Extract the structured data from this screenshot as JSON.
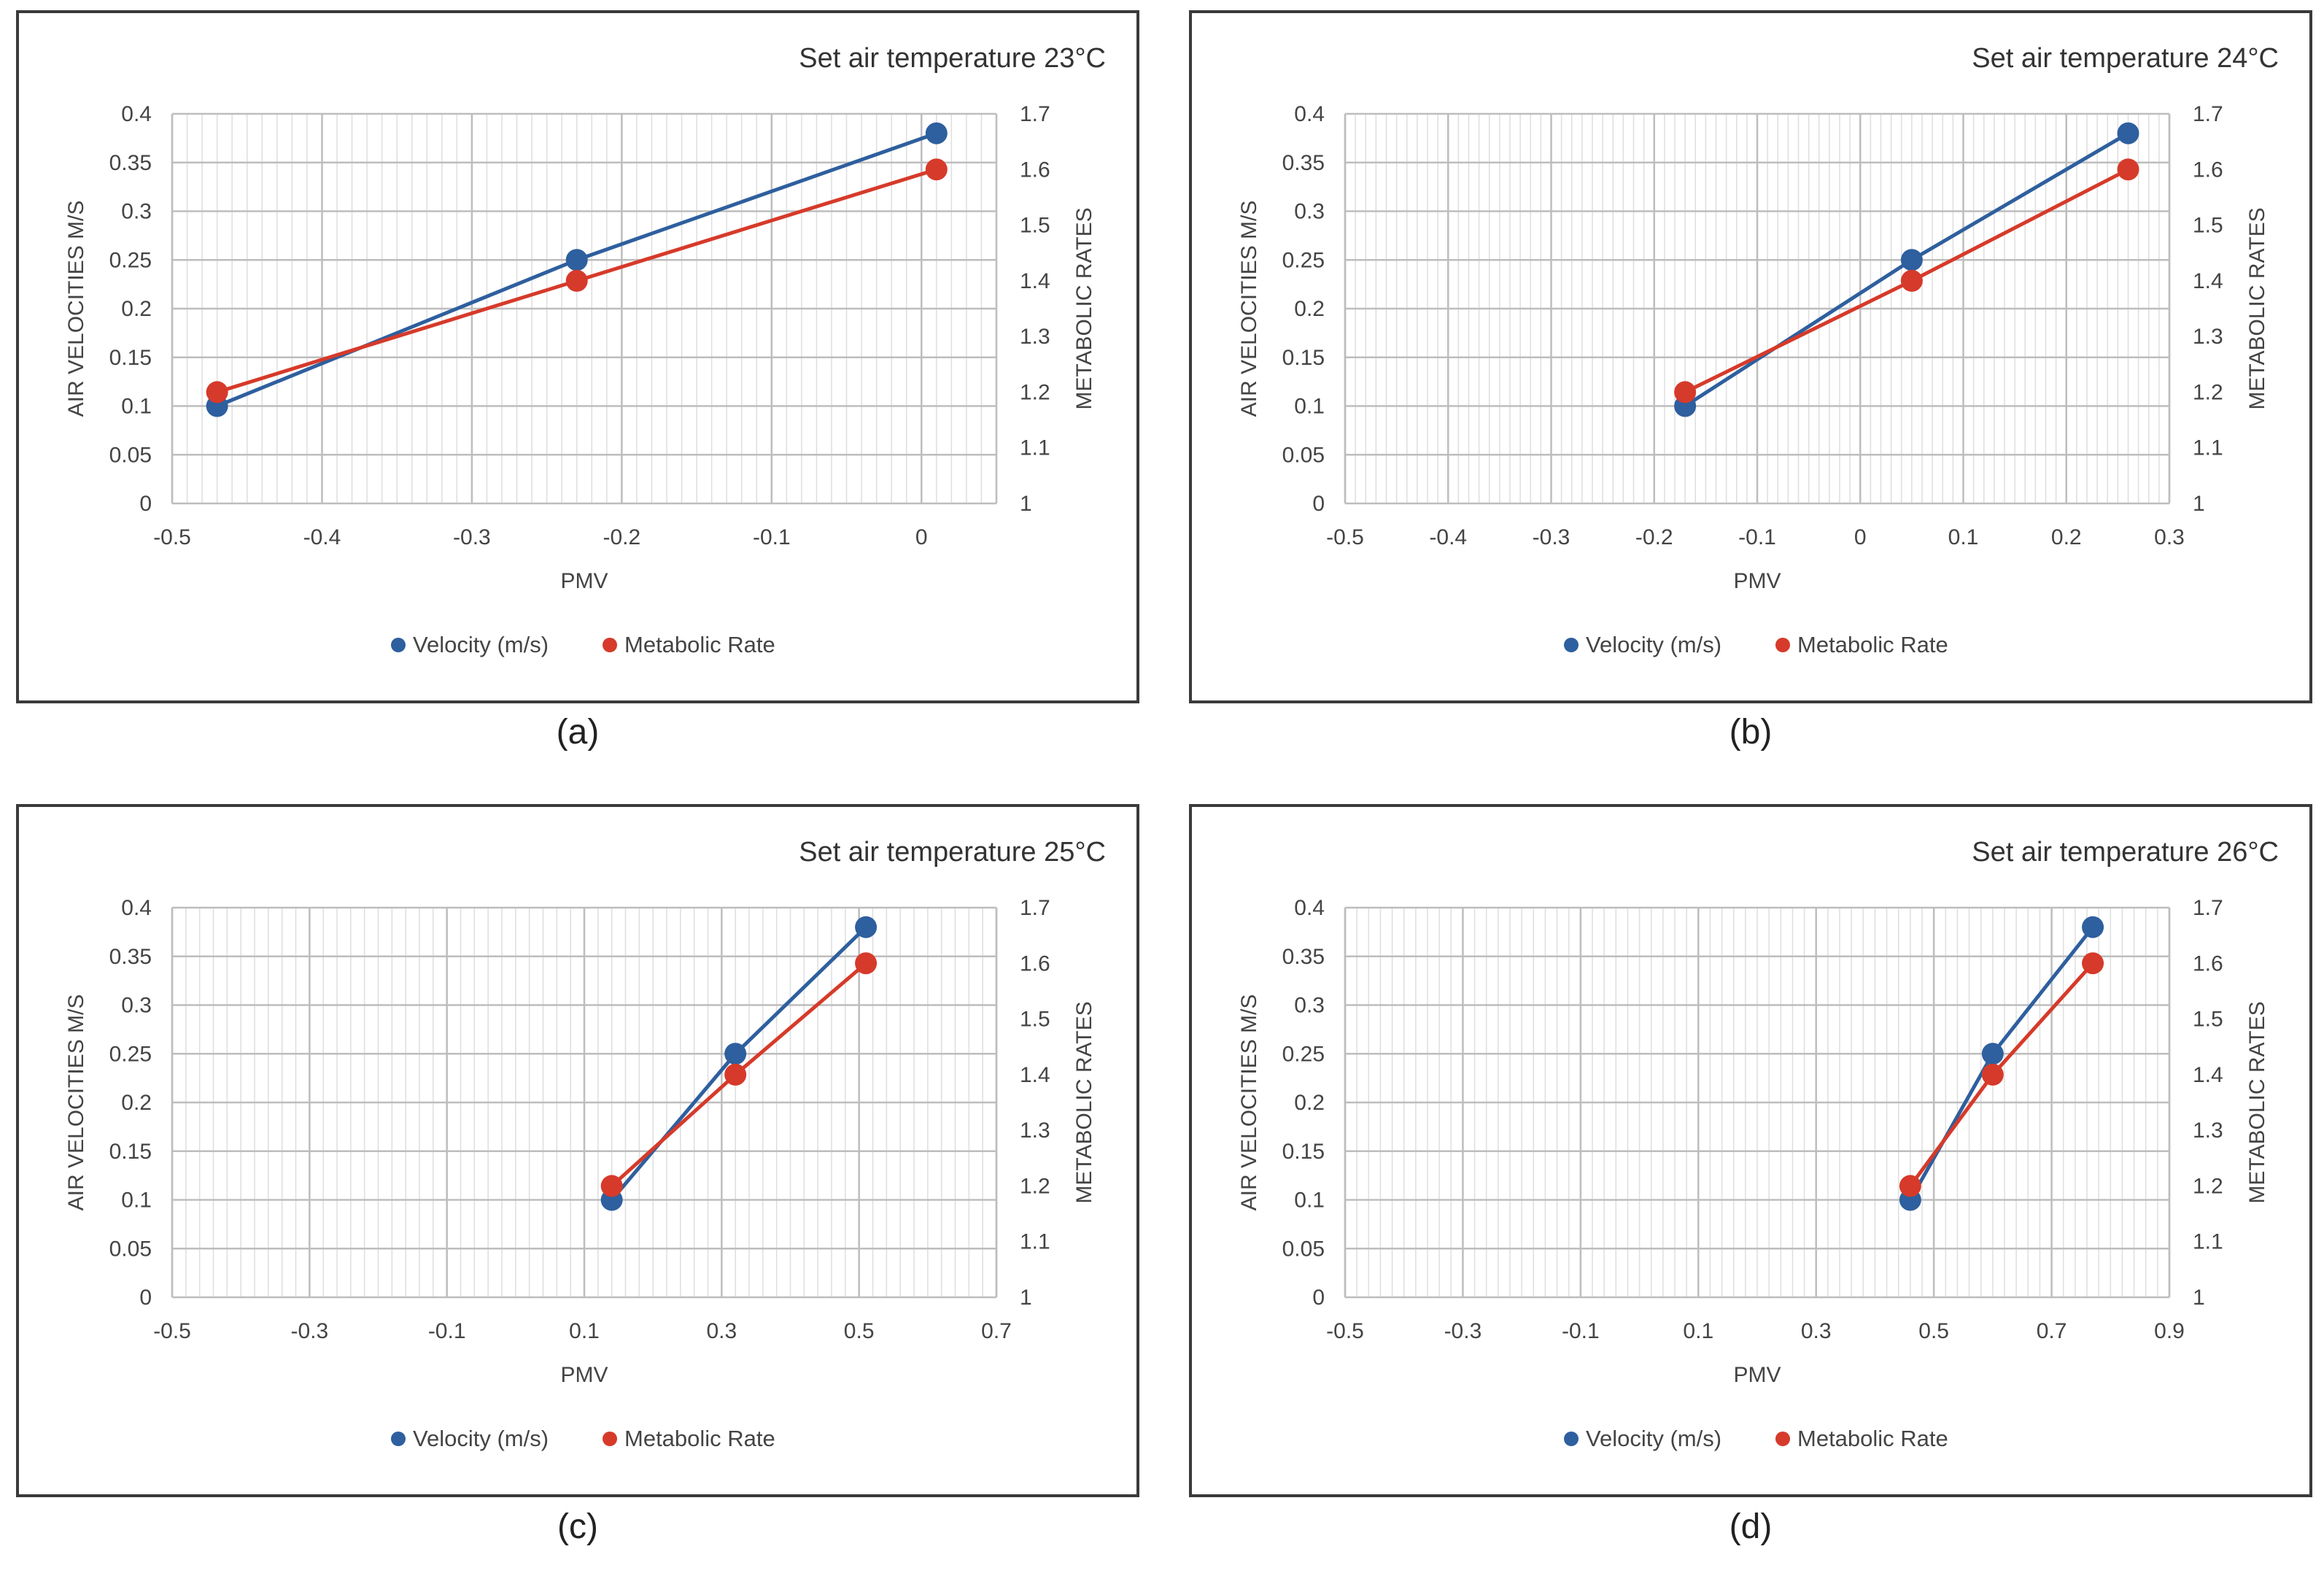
{
  "captions": [
    "(a)",
    "(b)",
    "(c)",
    "(d)"
  ],
  "colors": {
    "velocity": "#2e5f9e",
    "metabolic": "#d63a2a",
    "grid_major": "#bdbdbd",
    "grid_minor": "#dedede",
    "axis_text": "#444444"
  },
  "chart_data": [
    {
      "type": "line",
      "title": "Set air temperature 23°C",
      "xlabel": "PMV",
      "ylabel": "AIR VELOCITIES M/S",
      "y2label": "METABOLIC RATES",
      "xlim": [
        -0.5,
        0.05
      ],
      "xticks": [
        "-0.5",
        "-0.4",
        "-0.3",
        "-0.2",
        "-0.1",
        "0"
      ],
      "xtick_values": [
        -0.5,
        -0.4,
        -0.3,
        -0.2,
        -0.1,
        0
      ],
      "ylim": [
        0,
        0.4
      ],
      "yticks": [
        "0",
        "0.05",
        "0.1",
        "0.15",
        "0.2",
        "0.25",
        "0.3",
        "0.35",
        "0.4"
      ],
      "y2lim": [
        1,
        1.7
      ],
      "y2ticks": [
        "1",
        "1.1",
        "1.2",
        "1.3",
        "1.4",
        "1.5",
        "1.6",
        "1.7"
      ],
      "grid": true,
      "legend_position": "bottom",
      "series": [
        {
          "name": "Velocity (m/s)",
          "axis": "left",
          "x": [
            -0.47,
            -0.23,
            0.01
          ],
          "y": [
            0.1,
            0.25,
            0.38
          ]
        },
        {
          "name": "Metabolic Rate",
          "axis": "right",
          "x": [
            -0.47,
            -0.23,
            0.01
          ],
          "y": [
            1.2,
            1.4,
            1.6
          ]
        }
      ]
    },
    {
      "type": "line",
      "title": "Set air temperature 24°C",
      "xlabel": "PMV",
      "ylabel": "AIR VELOCITIES M/S",
      "y2label": "METABOLIC RATES",
      "xlim": [
        -0.5,
        0.3
      ],
      "xticks": [
        "-0.5",
        "-0.4",
        "-0.3",
        "-0.2",
        "-0.1",
        "0",
        "0.1",
        "0.2",
        "0.3"
      ],
      "xtick_values": [
        -0.5,
        -0.4,
        -0.3,
        -0.2,
        -0.1,
        0,
        0.1,
        0.2,
        0.3
      ],
      "ylim": [
        0,
        0.4
      ],
      "yticks": [
        "0",
        "0.05",
        "0.1",
        "0.15",
        "0.2",
        "0.25",
        "0.3",
        "0.35",
        "0.4"
      ],
      "y2lim": [
        1,
        1.7
      ],
      "y2ticks": [
        "1",
        "1.1",
        "1.2",
        "1.3",
        "1.4",
        "1.5",
        "1.6",
        "1.7"
      ],
      "grid": true,
      "legend_position": "bottom",
      "series": [
        {
          "name": "Velocity (m/s)",
          "axis": "left",
          "x": [
            -0.17,
            0.05,
            0.26
          ],
          "y": [
            0.1,
            0.25,
            0.38
          ]
        },
        {
          "name": "Metabolic Rate",
          "axis": "right",
          "x": [
            -0.17,
            0.05,
            0.26
          ],
          "y": [
            1.2,
            1.4,
            1.6
          ]
        }
      ]
    },
    {
      "type": "line",
      "title": "Set air temperature 25°C",
      "xlabel": "PMV",
      "ylabel": "AIR VELOCITIES M/S",
      "y2label": "METABOLIC RATES",
      "xlim": [
        -0.5,
        0.7
      ],
      "xticks": [
        "-0.5",
        "-0.3",
        "-0.1",
        "0.1",
        "0.3",
        "0.5",
        "0.7"
      ],
      "xtick_values": [
        -0.5,
        -0.3,
        -0.1,
        0.1,
        0.3,
        0.5,
        0.7
      ],
      "ylim": [
        0,
        0.4
      ],
      "yticks": [
        "0",
        "0.05",
        "0.1",
        "0.15",
        "0.2",
        "0.25",
        "0.3",
        "0.35",
        "0.4"
      ],
      "y2lim": [
        1,
        1.7
      ],
      "y2ticks": [
        "1",
        "1.1",
        "1.2",
        "1.3",
        "1.4",
        "1.5",
        "1.6",
        "1.7"
      ],
      "grid": true,
      "legend_position": "bottom",
      "series": [
        {
          "name": "Velocity (m/s)",
          "axis": "left",
          "x": [
            0.14,
            0.32,
            0.51
          ],
          "y": [
            0.1,
            0.25,
            0.38
          ]
        },
        {
          "name": "Metabolic Rate",
          "axis": "right",
          "x": [
            0.14,
            0.32,
            0.51
          ],
          "y": [
            1.2,
            1.4,
            1.6
          ]
        }
      ]
    },
    {
      "type": "line",
      "title": "Set air temperature 26°C",
      "xlabel": "PMV",
      "ylabel": "AIR VELOCITIES M/S",
      "y2label": "METABOLIC RATES",
      "xlim": [
        -0.5,
        0.9
      ],
      "xticks": [
        "-0.5",
        "-0.3",
        "-0.1",
        "0.1",
        "0.3",
        "0.5",
        "0.7",
        "0.9"
      ],
      "xtick_values": [
        -0.5,
        -0.3,
        -0.1,
        0.1,
        0.3,
        0.5,
        0.7,
        0.9
      ],
      "ylim": [
        0,
        0.4
      ],
      "yticks": [
        "0",
        "0.05",
        "0.1",
        "0.15",
        "0.2",
        "0.25",
        "0.3",
        "0.35",
        "0.4"
      ],
      "y2lim": [
        1,
        1.7
      ],
      "y2ticks": [
        "1",
        "1.1",
        "1.2",
        "1.3",
        "1.4",
        "1.5",
        "1.6",
        "1.7"
      ],
      "grid": true,
      "legend_position": "bottom",
      "series": [
        {
          "name": "Velocity (m/s)",
          "axis": "left",
          "x": [
            0.46,
            0.6,
            0.77
          ],
          "y": [
            0.1,
            0.25,
            0.38
          ]
        },
        {
          "name": "Metabolic Rate",
          "axis": "right",
          "x": [
            0.46,
            0.6,
            0.77
          ],
          "y": [
            1.2,
            1.4,
            1.6
          ]
        }
      ]
    }
  ]
}
